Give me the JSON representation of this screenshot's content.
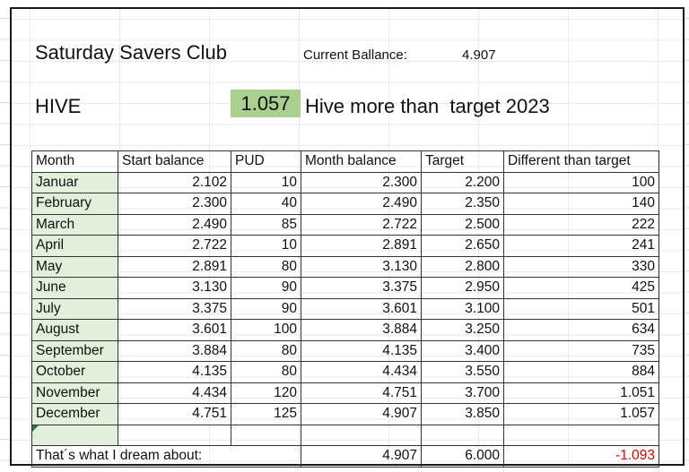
{
  "title": "Saturday Savers Club",
  "current_balance": {
    "label": "Current Ballance:",
    "value": "4.907"
  },
  "hive": {
    "label": "HIVE",
    "value": "1.057",
    "text": "Hive more than  target 2023",
    "highlight_color": "#a9d08e"
  },
  "table": {
    "headers": [
      "Month",
      "Start balance",
      "PUD",
      "Month balance",
      "Target",
      "Different than target"
    ],
    "rows": [
      [
        "Januar",
        "2.102",
        "10",
        "2.300",
        "2.200",
        "100"
      ],
      [
        "February",
        "2.300",
        "40",
        "2.490",
        "2.350",
        "140"
      ],
      [
        "March",
        "2.490",
        "85",
        "2.722",
        "2.500",
        "222"
      ],
      [
        "April",
        "2.722",
        "10",
        "2.891",
        "2.650",
        "241"
      ],
      [
        "May",
        "2.891",
        "80",
        "3.130",
        "2.800",
        "330"
      ],
      [
        "June",
        "3.130",
        "90",
        "3.375",
        "2.950",
        "425"
      ],
      [
        "July",
        "3.375",
        "90",
        "3.601",
        "3.100",
        "501"
      ],
      [
        "August",
        "3.601",
        "100",
        "3.884",
        "3.250",
        "634"
      ],
      [
        "September",
        "3.884",
        "80",
        "4.135",
        "3.400",
        "735"
      ],
      [
        "October",
        "4.135",
        "80",
        "4.434",
        "3.550",
        "884"
      ],
      [
        "November",
        "4.434",
        "120",
        "4.751",
        "3.700",
        "1.051"
      ],
      [
        "December",
        "4.751",
        "125",
        "4.907",
        "3.850",
        "1.057"
      ]
    ],
    "month_fill_color": "#e2efda"
  },
  "dream": {
    "label": "That´s what I dream about:",
    "month_balance": "4.907",
    "target": "6.000",
    "difference": "-1.093",
    "difference_color": "#e00000"
  }
}
